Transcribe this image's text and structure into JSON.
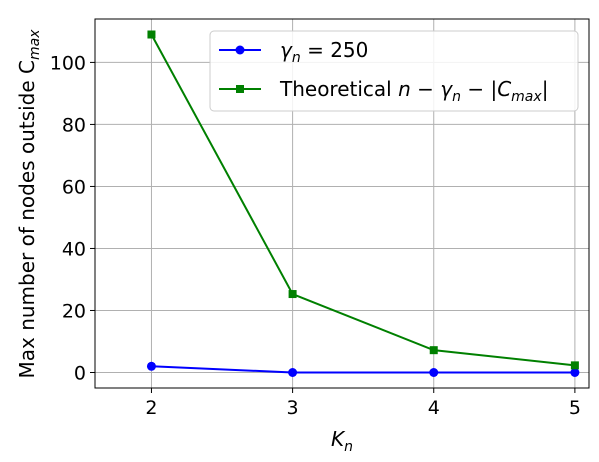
{
  "chart_data": {
    "type": "line",
    "x": [
      2,
      3,
      4,
      5
    ],
    "xlim": [
      1.6,
      5.1
    ],
    "ylim": [
      -5,
      114
    ],
    "xticks": [
      2,
      3,
      4,
      5
    ],
    "yticks": [
      0,
      20,
      40,
      60,
      80,
      100
    ],
    "grid": true,
    "legend_position": "top-right",
    "xlabel": {
      "main": "K",
      "sub": "n"
    },
    "ylabel": {
      "main": "Max number of nodes outside C",
      "sub": "max"
    },
    "series": [
      {
        "name": "γn = 250",
        "label_parts": {
          "sym": "γ",
          "sub": "n",
          "rest": " = 250"
        },
        "values": [
          2,
          0,
          0,
          0
        ],
        "color": "#0000ff",
        "marker": "circle"
      },
      {
        "name": "Theoretical n − γn − |Cmax|",
        "label_parts": {
          "prefix": "Theoretical ",
          "n": "n",
          "minus1": " − ",
          "sym": "γ",
          "sub1": "n",
          "minus2": " − |",
          "c": "C",
          "sub2": "max",
          "end": "|"
        },
        "values": [
          109,
          25.3,
          7.2,
          2.3
        ],
        "color": "#008000",
        "marker": "square"
      }
    ]
  }
}
